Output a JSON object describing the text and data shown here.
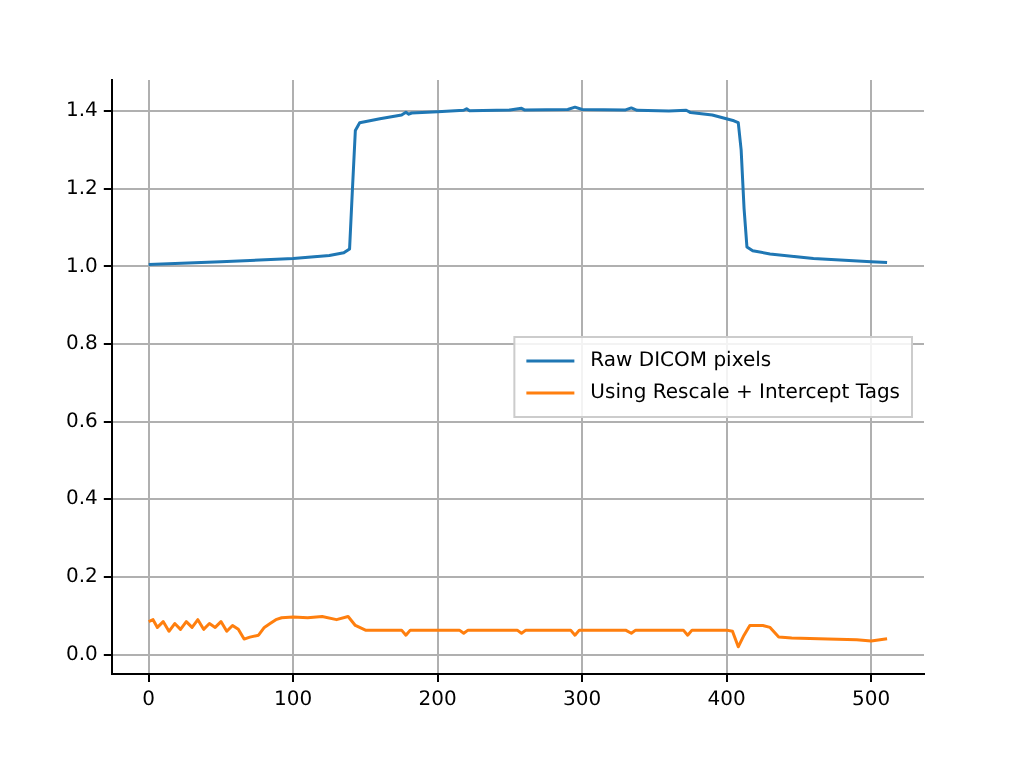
{
  "chart_data": {
    "type": "line",
    "xlim": [
      -25.55,
      536.55
    ],
    "xticks": [
      0,
      100,
      200,
      300,
      400,
      500
    ],
    "ylim": [
      -0.05,
      1.48
    ],
    "yticks": [
      {
        "value": 0,
        "label": "0.0"
      },
      {
        "value": 0.2,
        "label": "0.2"
      },
      {
        "value": 0.4,
        "label": "0.4"
      },
      {
        "value": 0.6,
        "label": "0.6"
      },
      {
        "value": 0.8,
        "label": "0.8"
      },
      {
        "value": 1,
        "label": "1.0"
      },
      {
        "value": 1.2,
        "label": "1.2"
      },
      {
        "value": 1.4,
        "label": "1.4"
      }
    ],
    "grid": true,
    "legend": "right",
    "series": [
      {
        "name": "Raw DICOM pixels",
        "color": "#1f77b4",
        "x": [
          0,
          50,
          100,
          125,
          135,
          139,
          141,
          143,
          146,
          160,
          175,
          178,
          180,
          182,
          200,
          218,
          220,
          222,
          250,
          258,
          260,
          290,
          295,
          300,
          330,
          334,
          338,
          360,
          372,
          375,
          390,
          405,
          408,
          410,
          412,
          414,
          418,
          430,
          460,
          500,
          511
        ],
        "values": [
          1.005,
          1.012,
          1.02,
          1.028,
          1.035,
          1.045,
          1.2,
          1.35,
          1.37,
          1.38,
          1.39,
          1.397,
          1.392,
          1.395,
          1.398,
          1.402,
          1.406,
          1.401,
          1.403,
          1.407,
          1.403,
          1.404,
          1.41,
          1.404,
          1.403,
          1.408,
          1.402,
          1.4,
          1.402,
          1.396,
          1.39,
          1.375,
          1.37,
          1.3,
          1.15,
          1.05,
          1.04,
          1.032,
          1.02,
          1.012,
          1.01
        ]
      },
      {
        "name": "Using Rescale + Intercept Tags",
        "color": "#ff7f0e",
        "x": [
          0,
          3,
          6,
          10,
          14,
          18,
          22,
          26,
          30,
          34,
          38,
          42,
          46,
          50,
          54,
          58,
          62,
          66,
          70,
          76,
          80,
          84,
          88,
          92,
          100,
          110,
          120,
          130,
          138,
          143,
          150,
          175,
          178,
          181,
          200,
          215,
          218,
          221,
          255,
          258,
          261,
          292,
          295,
          298,
          330,
          334,
          337,
          370,
          373,
          376,
          400,
          404,
          408,
          412,
          416,
          425,
          430,
          436,
          445,
          470,
          490,
          500,
          511
        ],
        "values": [
          0.085,
          0.09,
          0.07,
          0.085,
          0.06,
          0.08,
          0.065,
          0.085,
          0.07,
          0.09,
          0.065,
          0.08,
          0.07,
          0.085,
          0.06,
          0.075,
          0.065,
          0.04,
          0.045,
          0.05,
          0.07,
          0.08,
          0.09,
          0.095,
          0.097,
          0.095,
          0.098,
          0.09,
          0.098,
          0.075,
          0.063,
          0.063,
          0.05,
          0.063,
          0.063,
          0.063,
          0.055,
          0.063,
          0.063,
          0.055,
          0.063,
          0.063,
          0.05,
          0.063,
          0.063,
          0.055,
          0.063,
          0.063,
          0.05,
          0.063,
          0.063,
          0.06,
          0.02,
          0.05,
          0.075,
          0.075,
          0.07,
          0.045,
          0.043,
          0.04,
          0.038,
          0.035,
          0.041
        ]
      }
    ]
  }
}
